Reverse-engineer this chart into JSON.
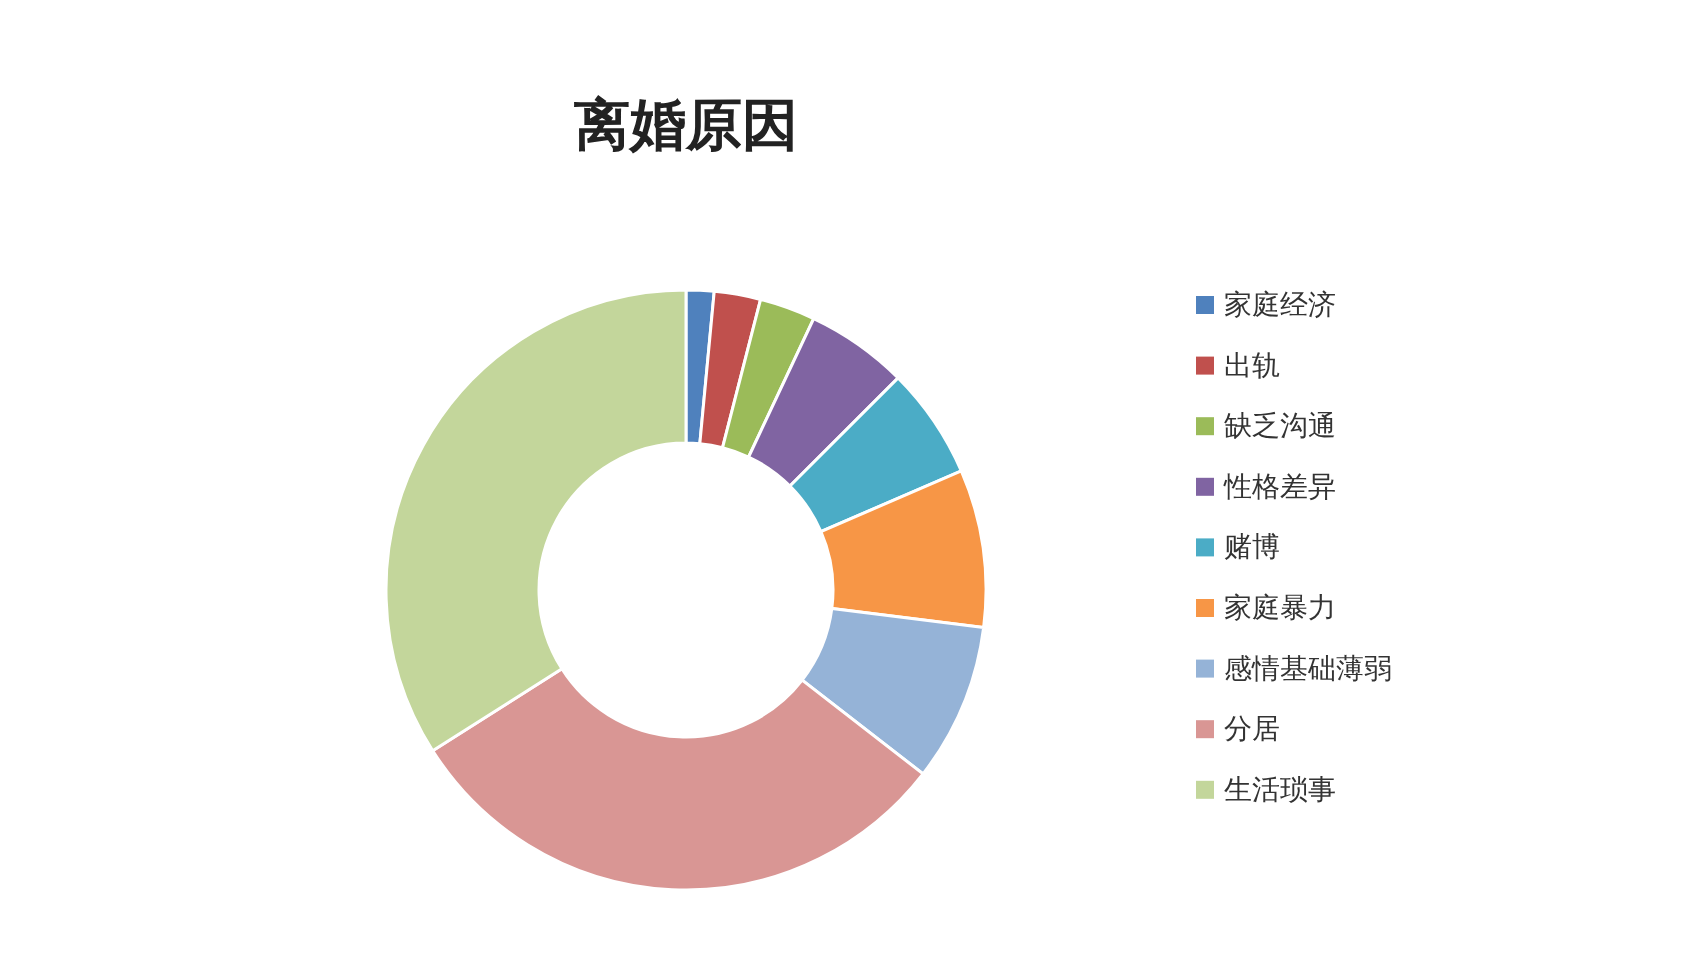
{
  "chart_data": {
    "type": "donut",
    "title": "离婚原因",
    "categories": [
      "家庭经济",
      "出轨",
      "缺乏沟通",
      "性格差异",
      "赌博",
      "家庭暴力",
      "感情基础薄弱",
      "分居",
      "生活琐事"
    ],
    "values": [
      1.5,
      2.5,
      3,
      5.5,
      6,
      8.5,
      8.5,
      30.5,
      34
    ],
    "colors": [
      "#4f81bd",
      "#c0504d",
      "#9bbb59",
      "#8064a2",
      "#4bacc6",
      "#f79646",
      "#95b3d7",
      "#d99694",
      "#c3d69b"
    ],
    "legend": "right"
  }
}
